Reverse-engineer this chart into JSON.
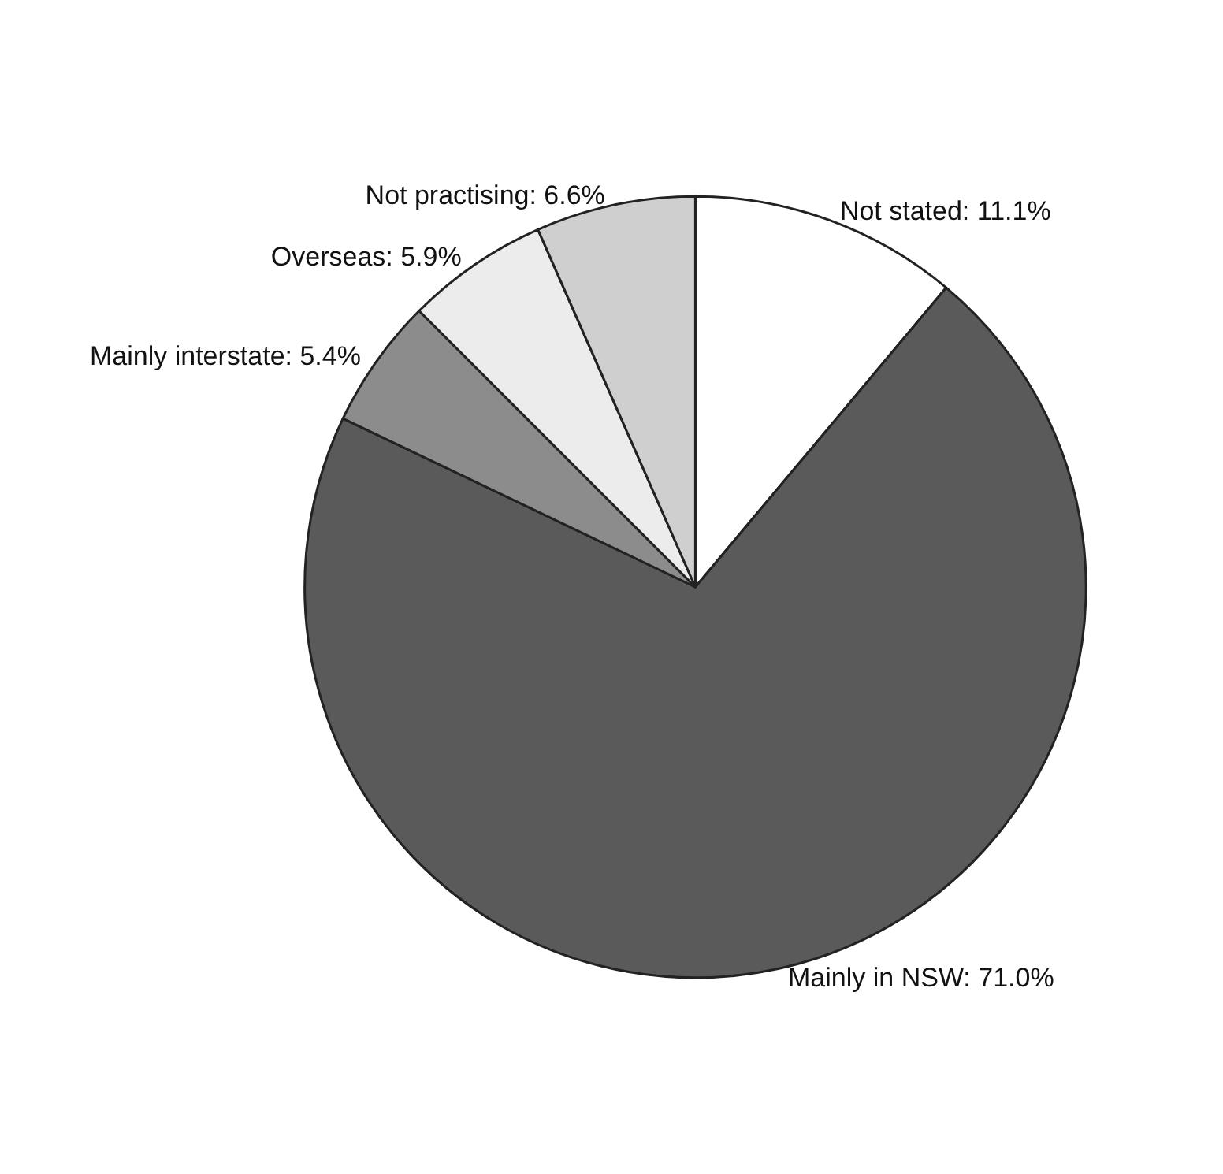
{
  "chart_data": {
    "type": "pie",
    "categories": [
      "Not stated",
      "Mainly in NSW",
      "Mainly interstate",
      "Overseas",
      "Not practising"
    ],
    "values": [
      11.1,
      71.0,
      5.4,
      5.9,
      6.6
    ],
    "value_labels": [
      "11.1%",
      "71.0%",
      "5.4%",
      "5.9%",
      "6.6%"
    ],
    "colors": [
      "#ffffff",
      "#5a5a5a",
      "#8c8c8c",
      "#ececec",
      "#cfcfcf"
    ],
    "legend": false
  }
}
